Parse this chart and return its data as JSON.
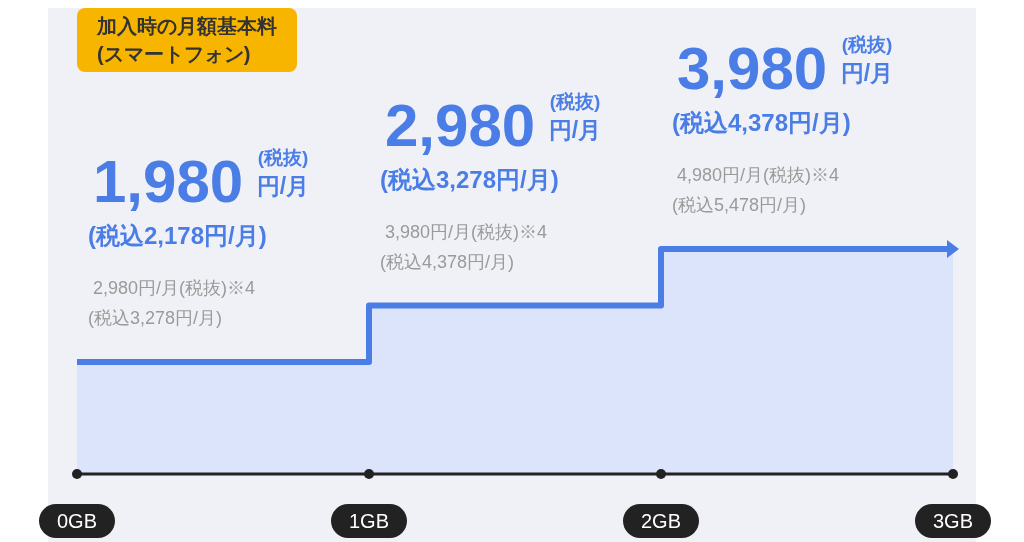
{
  "chart_data": {
    "type": "step",
    "title": "加入時の月額基本料",
    "subtitle": "(スマートフォン)",
    "x": [
      0,
      1,
      2,
      3
    ],
    "values": [
      1980,
      2980,
      3980,
      3980
    ],
    "color": "#4a7de6",
    "value_labels": [
      "1,980",
      "2,980",
      "3,980",
      null
    ],
    "xlim": [
      0,
      3
    ],
    "xticks": [
      {
        "value": 0,
        "label": "0GB"
      },
      {
        "value": 1,
        "label": "1GB"
      },
      {
        "value": 2,
        "label": "2GB"
      },
      {
        "value": 3,
        "label": "3GB"
      }
    ],
    "annotations": [
      "(税抜)",
      "円/月",
      "(税込2,178円/月)",
      "2,980円/月(税抜)※4",
      "(税込3,278円/月)",
      "(税抜)",
      "円/月",
      "(税込3,278円/月)",
      "3,980円/月(税抜)※4",
      "(税込4,378円/月)",
      "(税抜)",
      "円/月",
      "(税込4,378円/月)",
      "4,980円/月(税抜)※4",
      "(税込5,478円/月)"
    ],
    "marker": "none"
  }
}
